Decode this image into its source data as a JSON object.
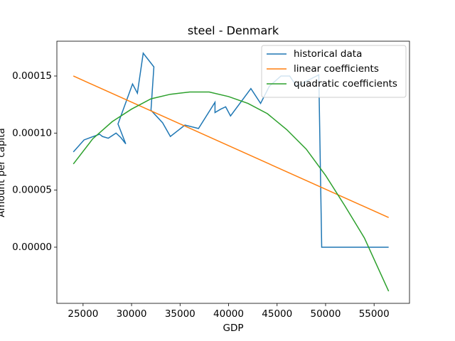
{
  "chart_data": {
    "type": "line",
    "title": "steel - Denmark",
    "x_label": "GDP",
    "y_label": "Amount per capita",
    "xlim": [
      22300,
      58650
    ],
    "ylim": [
      -4.92e-05,
      0.0001805
    ],
    "xticks": [
      25000,
      30000,
      35000,
      40000,
      45000,
      50000,
      55000
    ],
    "yticks": [
      {
        "value": 0,
        "label": "0.00000"
      },
      {
        "value": 5e-05,
        "label": "0.00005"
      },
      {
        "value": 0.0001,
        "label": "0.00010"
      },
      {
        "value": 0.00015,
        "label": "0.00015"
      }
    ],
    "legend": "upper right",
    "series": [
      {
        "name": "historical data",
        "color": "#1f77b4",
        "x": [
          24000,
          25100,
          26700,
          27000,
          27600,
          28400,
          28900,
          29400,
          28600,
          30100,
          30600,
          31200,
          32300,
          32000,
          33200,
          34000,
          35500,
          36900,
          38600,
          38600,
          39200,
          39700,
          40200,
          42300,
          43300,
          44200,
          45400,
          46300,
          47000,
          49300,
          49600,
          51200,
          56500
        ],
        "values": [
          8.35e-05,
          9.4e-05,
          9.9e-05,
          9.7e-05,
          9.55e-05,
          0.0001,
          9.6e-05,
          9.05e-05,
          0.000108,
          0.000143,
          0.000135,
          0.00017,
          0.000158,
          0.00012,
          0.000109,
          9.7e-05,
          0.000107,
          0.000104,
          0.000127,
          0.000118,
          0.000121,
          0.000123,
          0.000115,
          0.000139,
          0.000126,
          0.000141,
          0.00015,
          0.00015,
          0.000141,
          0.000151,
          0,
          0,
          0
        ]
      },
      {
        "name": "linear coefficients",
        "color": "#ff7f0e",
        "x": [
          24000,
          56500
        ],
        "values": [
          0.00015,
          2.6e-05
        ]
      },
      {
        "name": "quadratic coefficients",
        "color": "#2ca02c",
        "x": [
          24000,
          26000,
          28000,
          30000,
          32000,
          34000,
          36000,
          38000,
          40000,
          42000,
          44000,
          46000,
          48000,
          50000,
          52000,
          54000,
          56500
        ],
        "values": [
          7.29e-05,
          9.5e-05,
          0.00011,
          0.000121,
          0.00013,
          0.000134,
          0.000136,
          0.000136,
          0.000132,
          0.000126,
          0.000117,
          0.000103,
          8.6e-05,
          6.29e-05,
          3.61e-05,
          8.1e-06,
          -3.86e-05
        ]
      }
    ]
  }
}
